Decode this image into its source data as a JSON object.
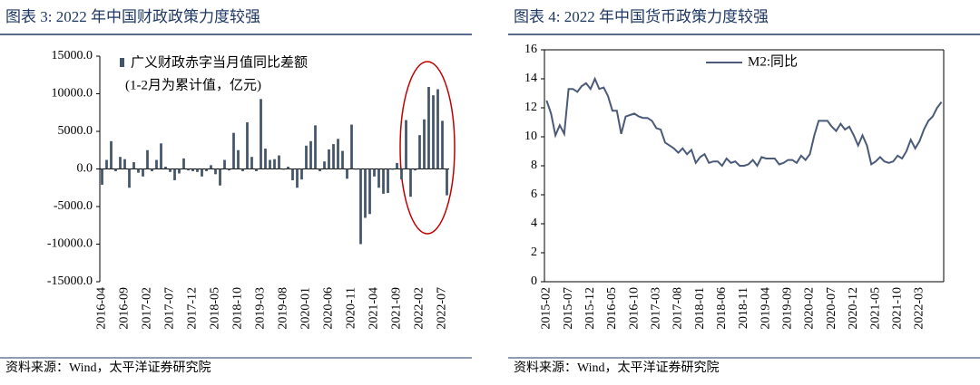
{
  "chart_data": [
    {
      "type": "bar",
      "title": "图表 3:  2022 年中国财政政策力度较强",
      "source": "资料来源：Wind，太平洋证券研究院",
      "annotation": "(1-2月为累计值，亿元)",
      "categories": [
        "2016-04",
        null,
        null,
        null,
        null,
        "2016-09",
        null,
        null,
        null,
        null,
        "2017-02",
        null,
        null,
        null,
        null,
        "2017-07",
        null,
        null,
        null,
        null,
        "2017-12",
        null,
        null,
        null,
        null,
        "2018-05",
        null,
        null,
        null,
        null,
        "2018-10",
        null,
        null,
        null,
        null,
        "2019-03",
        null,
        null,
        null,
        null,
        "2019-08",
        null,
        null,
        null,
        null,
        "2020-01",
        null,
        null,
        null,
        null,
        "2020-06",
        null,
        null,
        null,
        null,
        "2020-11",
        null,
        null,
        null,
        null,
        "2021-04",
        null,
        null,
        null,
        null,
        "2021-09",
        null,
        null,
        null,
        null,
        "2022-02",
        null,
        null,
        null,
        null,
        "2022-07",
        null
      ],
      "series": [
        {
          "name": "广义财政赤字当月值同比差额",
          "color": "#44546a",
          "values": [
            -2100,
            1200,
            3700,
            -300,
            1600,
            1300,
            -2500,
            900,
            -500,
            -1000,
            2500,
            -300,
            1200,
            3400,
            300,
            -400,
            -1500,
            -600,
            1400,
            -200,
            -300,
            -400,
            -1000,
            -300,
            500,
            -700,
            -2200,
            1200,
            -200,
            4800,
            2500,
            -300,
            6200,
            1600,
            -300,
            9300,
            2700,
            1200,
            1300,
            1800,
            -100,
            300,
            -1500,
            -2500,
            -1400,
            3100,
            3700,
            5800,
            -300,
            1000,
            2600,
            3300,
            4000,
            2400,
            -1300,
            5900,
            -100,
            -10000,
            -6500,
            -6000,
            -1000,
            -2500,
            -3300,
            -3200,
            -100,
            800,
            -1400,
            6500,
            -3700,
            -200,
            4500,
            6600,
            10900,
            9800,
            10600,
            6400,
            -3500
          ]
        }
      ],
      "ylim": [
        -15000,
        15000
      ],
      "yticks": [
        {
          "value": -15000,
          "label": "-15000.0"
        },
        {
          "value": -10000,
          "label": "-10000.0"
        },
        {
          "value": -5000,
          "label": "-5000.0"
        },
        {
          "value": 0,
          "label": "0.0"
        },
        {
          "value": 5000,
          "label": "5000.0"
        },
        {
          "value": 10000,
          "label": "10000.0"
        },
        {
          "value": 15000,
          "label": "15000.0"
        }
      ]
    },
    {
      "type": "line",
      "title": "图表 4:  2022 年中国货币政策力度较强",
      "source": "资料来源：Wind，太平洋证券研究院",
      "categories": [
        "2015-02",
        null,
        null,
        null,
        null,
        "2015-07",
        null,
        null,
        null,
        null,
        "2015-12",
        null,
        null,
        null,
        null,
        "2016-05",
        null,
        null,
        null,
        null,
        "2016-10",
        null,
        null,
        null,
        null,
        "2017-03",
        null,
        null,
        null,
        null,
        "2017-08",
        null,
        null,
        null,
        null,
        "2018-01",
        null,
        null,
        null,
        null,
        "2018-06",
        null,
        null,
        null,
        null,
        "2018-11",
        null,
        null,
        null,
        null,
        "2019-04",
        null,
        null,
        null,
        null,
        "2019-09",
        null,
        null,
        null,
        null,
        "2020-02",
        null,
        null,
        null,
        null,
        "2020-07",
        null,
        null,
        null,
        null,
        "2020-12",
        null,
        null,
        null,
        null,
        "2021-05",
        null,
        null,
        null,
        null,
        "2021-10",
        null,
        null,
        null,
        null,
        "2022-03",
        null,
        null,
        null,
        null,
        null
      ],
      "series": [
        {
          "name": "M2:同比",
          "color": "#4a5a78",
          "values": [
            12.5,
            11.6,
            10.1,
            10.8,
            10.2,
            13.3,
            13.3,
            13.1,
            13.5,
            13.7,
            13.3,
            14.0,
            13.3,
            13.4,
            12.8,
            11.8,
            11.8,
            10.2,
            11.4,
            11.5,
            11.6,
            11.4,
            11.3,
            11.3,
            11.1,
            10.6,
            10.5,
            9.6,
            9.4,
            9.2,
            8.9,
            9.2,
            8.8,
            9.1,
            8.2,
            8.6,
            8.8,
            8.2,
            8.3,
            8.3,
            8.0,
            8.5,
            8.2,
            8.3,
            8.0,
            8.0,
            8.1,
            8.4,
            8.0,
            8.6,
            8.5,
            8.5,
            8.5,
            8.1,
            8.2,
            8.4,
            8.4,
            8.2,
            8.7,
            8.4,
            8.8,
            10.1,
            11.1,
            11.1,
            11.1,
            10.7,
            10.4,
            10.9,
            10.5,
            10.7,
            10.1,
            9.4,
            10.1,
            9.4,
            8.1,
            8.3,
            8.6,
            8.3,
            8.2,
            8.3,
            8.7,
            8.5,
            9.0,
            9.8,
            9.2,
            9.7,
            10.5,
            11.1,
            11.4,
            12.0,
            12.4
          ]
        }
      ],
      "ylim": [
        0,
        16
      ],
      "yticks": [
        0,
        2,
        4,
        6,
        8,
        10,
        12,
        14,
        16
      ]
    }
  ]
}
